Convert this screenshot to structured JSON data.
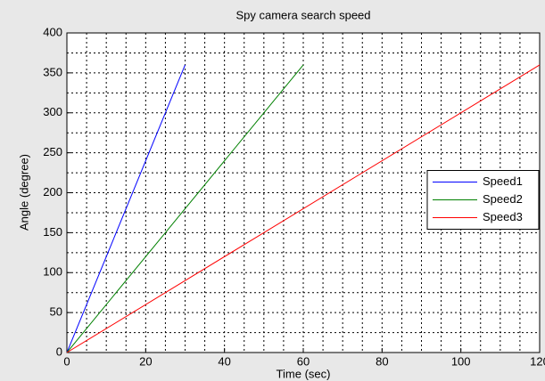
{
  "chart_data": {
    "type": "line",
    "title": "Spy camera search speed",
    "xlabel": "Time (sec)",
    "ylabel": "Angle (degree)",
    "series": [
      {
        "name": "Speed1",
        "color": "#0000ff",
        "x": [
          0,
          30
        ],
        "values": [
          0,
          360
        ]
      },
      {
        "name": "Speed2",
        "color": "#008000",
        "x": [
          0,
          60
        ],
        "values": [
          0,
          360
        ]
      },
      {
        "name": "Speed3",
        "color": "#ff0000",
        "x": [
          0,
          120
        ],
        "values": [
          0,
          360
        ]
      }
    ],
    "xlim": [
      0,
      120
    ],
    "xticks": [
      0,
      20,
      40,
      60,
      80,
      100,
      120
    ],
    "ylim": [
      0,
      400
    ],
    "yticks": [
      0,
      50,
      100,
      150,
      200,
      250,
      300,
      350,
      400
    ],
    "grid": true,
    "minor_grid": true,
    "legend": "east"
  }
}
